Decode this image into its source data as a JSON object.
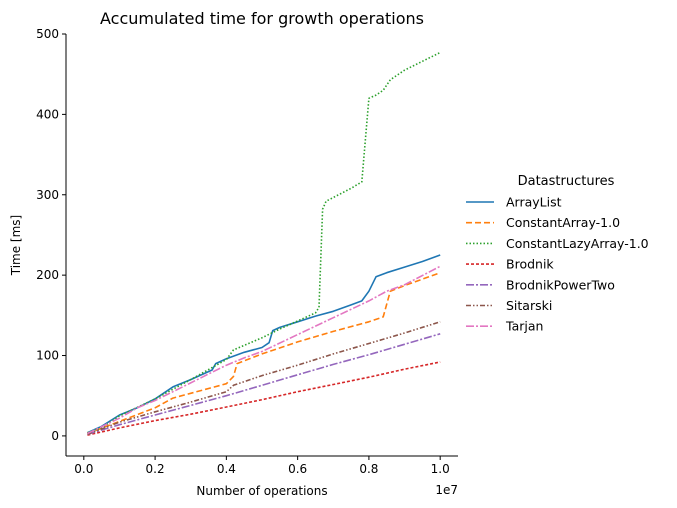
{
  "chart_data": {
    "type": "line",
    "title": "Accumulated time for growth operations",
    "xlabel": "Number of operations",
    "ylabel": "Time [ms]",
    "x_offset_label": "1e7",
    "xlim": [
      -0.05,
      1.05
    ],
    "ylim": [
      -25,
      500
    ],
    "xticks": [
      0.0,
      0.2,
      0.4,
      0.6,
      0.8,
      1.0
    ],
    "xtick_labels": [
      "0.0",
      "0.2",
      "0.4",
      "0.6",
      "0.8",
      "1.0"
    ],
    "yticks": [
      0,
      100,
      200,
      300,
      400,
      500
    ],
    "ytick_labels": [
      "0",
      "100",
      "200",
      "300",
      "400",
      "500"
    ],
    "legend_title": "Datastructures",
    "legend_position": "right",
    "series": [
      {
        "name": "ArrayList",
        "color": "#1f77b4",
        "dash": "",
        "x": [
          0.01,
          0.05,
          0.1,
          0.15,
          0.2,
          0.25,
          0.3,
          0.36,
          0.37,
          0.4,
          0.45,
          0.5,
          0.52,
          0.53,
          0.55,
          0.6,
          0.65,
          0.7,
          0.75,
          0.78,
          0.8,
          0.82,
          0.85,
          0.9,
          0.95,
          1.0
        ],
        "y": [
          4,
          12,
          26,
          35,
          46,
          61,
          70,
          82,
          90,
          96,
          104,
          110,
          116,
          131,
          135,
          142,
          149,
          155,
          163,
          168,
          180,
          198,
          203,
          210,
          217,
          225
        ]
      },
      {
        "name": "ConstantArray-1.0",
        "color": "#ff7f0e",
        "dash": "6,3",
        "x": [
          0.01,
          0.1,
          0.2,
          0.25,
          0.3,
          0.4,
          0.42,
          0.43,
          0.5,
          0.6,
          0.7,
          0.8,
          0.84,
          0.86,
          0.9,
          1.0
        ],
        "y": [
          3,
          18,
          35,
          47,
          53,
          65,
          74,
          90,
          102,
          117,
          130,
          142,
          148,
          180,
          187,
          203
        ]
      },
      {
        "name": "ConstantLazyArray-1.0",
        "color": "#2ca02c",
        "dash": "1.5,2",
        "x": [
          0.01,
          0.05,
          0.1,
          0.2,
          0.3,
          0.4,
          0.42,
          0.5,
          0.55,
          0.6,
          0.65,
          0.66,
          0.67,
          0.68,
          0.75,
          0.78,
          0.8,
          0.82,
          0.84,
          0.86,
          0.9,
          0.95,
          1.0
        ],
        "y": [
          4,
          10,
          25,
          46,
          70,
          95,
          107,
          122,
          133,
          143,
          153,
          160,
          282,
          292,
          308,
          316,
          420,
          424,
          430,
          443,
          455,
          466,
          477
        ]
      },
      {
        "name": "Brodnik",
        "color": "#d62728",
        "dash": "3,2",
        "x": [
          0.01,
          0.1,
          0.2,
          0.3,
          0.4,
          0.5,
          0.6,
          0.7,
          0.8,
          0.9,
          1.0
        ],
        "y": [
          1,
          10,
          19,
          27,
          36,
          45,
          55,
          64,
          73,
          83,
          92
        ]
      },
      {
        "name": "BrodnikPowerTwo",
        "color": "#9467bd",
        "dash": "8,2,2,2",
        "x": [
          0.01,
          0.1,
          0.2,
          0.3,
          0.4,
          0.5,
          0.6,
          0.7,
          0.8,
          0.9,
          1.0
        ],
        "y": [
          2,
          14,
          26,
          38,
          50,
          63,
          76,
          89,
          101,
          114,
          127
        ]
      },
      {
        "name": "Sitarski",
        "color": "#8c564b",
        "dash": "5,2,1.5,2,1.5,2",
        "x": [
          0.01,
          0.1,
          0.2,
          0.3,
          0.4,
          0.42,
          0.5,
          0.6,
          0.7,
          0.8,
          0.9,
          1.0
        ],
        "y": [
          2,
          17,
          30,
          42,
          55,
          63,
          75,
          88,
          102,
          115,
          128,
          142
        ]
      },
      {
        "name": "Tarjan",
        "color": "#e377c2",
        "dash": "8,2,2,2",
        "x": [
          0.01,
          0.1,
          0.15,
          0.2,
          0.25,
          0.3,
          0.35,
          0.4,
          0.45,
          0.5,
          0.6,
          0.7,
          0.8,
          0.85,
          0.9,
          1.0
        ],
        "y": [
          3,
          22,
          35,
          44,
          55,
          66,
          77,
          88,
          97,
          105,
          126,
          147,
          168,
          180,
          188,
          211
        ]
      }
    ]
  }
}
